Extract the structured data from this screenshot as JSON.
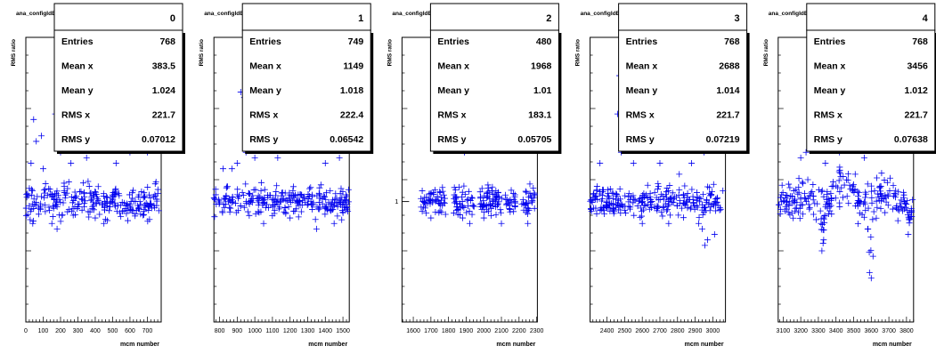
{
  "colors": {
    "marker": "#0000ee",
    "axis": "#000000",
    "statbox_bg": "#ffffff",
    "shadow": "#000000"
  },
  "chart_data": [
    {
      "type": "scatter",
      "index": 0,
      "title": "ana_configIdB.root/ana_configIdC.root",
      "hist_id": "0",
      "xlabel": "mcm number",
      "ylabel": "RMS ratio",
      "xlim": [
        0,
        780
      ],
      "ylim": [
        0.78,
        1.3
      ],
      "xticks": [
        0,
        100,
        200,
        300,
        400,
        500,
        600,
        700
      ],
      "yticks": [],
      "show_y_one": false,
      "stats": {
        "Entries": "768",
        "Mean x": "383.5",
        "Mean y": "1.024",
        "RMS x": "221.7",
        "RMS y": "0.07012"
      },
      "band": {
        "xrange": [
          0,
          768
        ],
        "center": 1.0,
        "spread": 0.03
      },
      "outliers": [
        [
          45,
          1.15
        ],
        [
          60,
          1.11
        ],
        [
          90,
          1.12
        ],
        [
          170,
          1.16
        ],
        [
          300,
          1.17
        ],
        [
          480,
          1.15
        ],
        [
          560,
          1.16
        ],
        [
          630,
          1.15
        ],
        [
          30,
          1.07
        ],
        [
          100,
          1.06
        ],
        [
          200,
          1.09
        ],
        [
          260,
          1.07
        ],
        [
          350,
          1.08
        ],
        [
          520,
          1.07
        ],
        [
          600,
          1.09
        ],
        [
          700,
          1.09
        ],
        [
          150,
          0.96
        ],
        [
          180,
          0.95
        ],
        [
          400,
          0.97
        ],
        [
          450,
          0.96
        ],
        [
          40,
          0.96
        ]
      ]
    },
    {
      "type": "scatter",
      "index": 1,
      "title": "ana_configIdB.root/ana_configIdC.root",
      "hist_id": "1",
      "xlabel": "mcm number",
      "ylabel": "RMS ratio",
      "xlim": [
        768,
        1536
      ],
      "ylim": [
        0.78,
        1.3
      ],
      "xticks": [
        800,
        900,
        1000,
        1100,
        1200,
        1300,
        1400,
        1500
      ],
      "yticks": [],
      "show_y_one": false,
      "stats": {
        "Entries": "749",
        "Mean x": "1149",
        "Mean y": "1.018",
        "RMS x": "222.4",
        "RMS y": "0.06542"
      },
      "band": {
        "xrange": [
          768,
          1536
        ],
        "center": 1.0,
        "spread": 0.025
      },
      "outliers": [
        [
          920,
          1.2
        ],
        [
          940,
          1.19
        ],
        [
          870,
          1.06
        ],
        [
          900,
          1.07
        ],
        [
          950,
          1.09
        ],
        [
          1000,
          1.08
        ],
        [
          1130,
          1.08
        ],
        [
          1260,
          1.1
        ],
        [
          1320,
          1.14
        ],
        [
          1400,
          1.07
        ],
        [
          1480,
          1.08
        ],
        [
          820,
          1.06
        ],
        [
          1050,
          0.96
        ],
        [
          1200,
          0.97
        ],
        [
          1350,
          0.95
        ],
        [
          1450,
          0.96
        ]
      ]
    },
    {
      "type": "scatter",
      "index": 2,
      "title": "ana_configIdB.root/ana_configIdC.root",
      "hist_id": "2",
      "xlabel": "mcm number",
      "ylabel": "RMS ratio",
      "xlim": [
        1536,
        2304
      ],
      "ylim": [
        0.78,
        1.3
      ],
      "xticks": [
        1600,
        1700,
        1800,
        1900,
        2000,
        2100,
        2200,
        2300
      ],
      "yticks": [
        1
      ],
      "show_y_one": true,
      "stats": {
        "Entries": "480",
        "Mean x": "1968",
        "Mean y": "1.01",
        "RMS x": "183.1",
        "RMS y": "0.05705"
      },
      "band": {
        "xrange": [
          1640,
          2290
        ],
        "center": 1.0,
        "spread": 0.025,
        "gaps": [
          [
            1785,
            1825
          ],
          [
            1945,
            1975
          ],
          [
            2105,
            2120
          ],
          [
            2185,
            2215
          ]
        ]
      },
      "outliers": [
        [
          1890,
          1.09
        ],
        [
          1950,
          1.16
        ],
        [
          2040,
          1.15
        ],
        [
          1880,
          0.97
        ],
        [
          1920,
          0.96
        ],
        [
          2000,
          0.97
        ],
        [
          2250,
          0.96
        ],
        [
          1700,
          0.97
        ],
        [
          2100,
          0.96
        ]
      ]
    },
    {
      "type": "scatter",
      "index": 3,
      "title": "ana_configIdB.root/ana_configIdC.root",
      "hist_id": "3",
      "xlabel": "mcm number",
      "ylabel": "RMS ratio",
      "xlim": [
        2304,
        3072
      ],
      "ylim": [
        0.78,
        1.3
      ],
      "xticks": [
        2400,
        2500,
        2600,
        2700,
        2800,
        2900,
        3000
      ],
      "yticks": [],
      "show_y_one": false,
      "stats": {
        "Entries": "768",
        "Mean x": "2688",
        "Mean y": "1.014",
        "RMS x": "221.7",
        "RMS y": "0.07219"
      },
      "band": {
        "xrange": [
          2304,
          3060
        ],
        "center": 1.0,
        "spread": 0.025
      },
      "outliers": [
        [
          2470,
          1.23
        ],
        [
          2460,
          1.16
        ],
        [
          2590,
          1.16
        ],
        [
          2900,
          1.15
        ],
        [
          2360,
          1.07
        ],
        [
          2480,
          1.09
        ],
        [
          2550,
          1.07
        ],
        [
          2700,
          1.07
        ],
        [
          2850,
          1.11
        ],
        [
          2950,
          1.09
        ],
        [
          2880,
          1.07
        ],
        [
          2810,
          1.05
        ],
        [
          2940,
          0.95
        ],
        [
          2955,
          0.92
        ],
        [
          2970,
          0.93
        ],
        [
          3010,
          0.94
        ],
        [
          2920,
          0.96
        ],
        [
          2750,
          0.96
        ],
        [
          2600,
          0.96
        ]
      ]
    },
    {
      "type": "scatter",
      "index": 4,
      "title": "ana_configIdB.root/ana_configIdC.root",
      "hist_id": "4",
      "xlabel": "mcm number",
      "ylabel": "RMS ratio",
      "xlim": [
        3072,
        3840
      ],
      "ylim": [
        0.78,
        1.3
      ],
      "xticks": [
        3100,
        3200,
        3300,
        3400,
        3500,
        3600,
        3700,
        3800
      ],
      "yticks": [],
      "show_y_one": false,
      "stats": {
        "Entries": "768",
        "Mean x": "3456",
        "Mean y": "1.012",
        "RMS x": "221.7",
        "RMS y": "0.07638"
      },
      "band": {
        "xrange": [
          3072,
          3840
        ],
        "center": 1.0,
        "spread": 0.03,
        "dips": [
          [
            3305,
            3345,
            0.92
          ],
          [
            3570,
            3620,
            0.88
          ],
          [
            3795,
            3840,
            0.96
          ]
        ],
        "lifts": [
          [
            3380,
            3520,
            1.03
          ],
          [
            3640,
            3740,
            1.02
          ]
        ]
      },
      "outliers": [
        [
          3200,
          1.08
        ],
        [
          3230,
          1.09
        ],
        [
          3240,
          1.04
        ],
        [
          3290,
          1.12
        ],
        [
          3300,
          1.13
        ],
        [
          3420,
          1.09
        ],
        [
          3460,
          1.1
        ],
        [
          3480,
          1.15
        ],
        [
          3620,
          1.13
        ],
        [
          3700,
          1.14
        ],
        [
          3800,
          1.1
        ],
        [
          3340,
          1.07
        ],
        [
          3560,
          1.08
        ],
        [
          3590,
          0.87
        ],
        [
          3600,
          0.86
        ],
        [
          3330,
          0.93
        ],
        [
          3320,
          0.91
        ],
        [
          3610,
          0.9
        ],
        [
          3810,
          0.94
        ]
      ]
    }
  ]
}
